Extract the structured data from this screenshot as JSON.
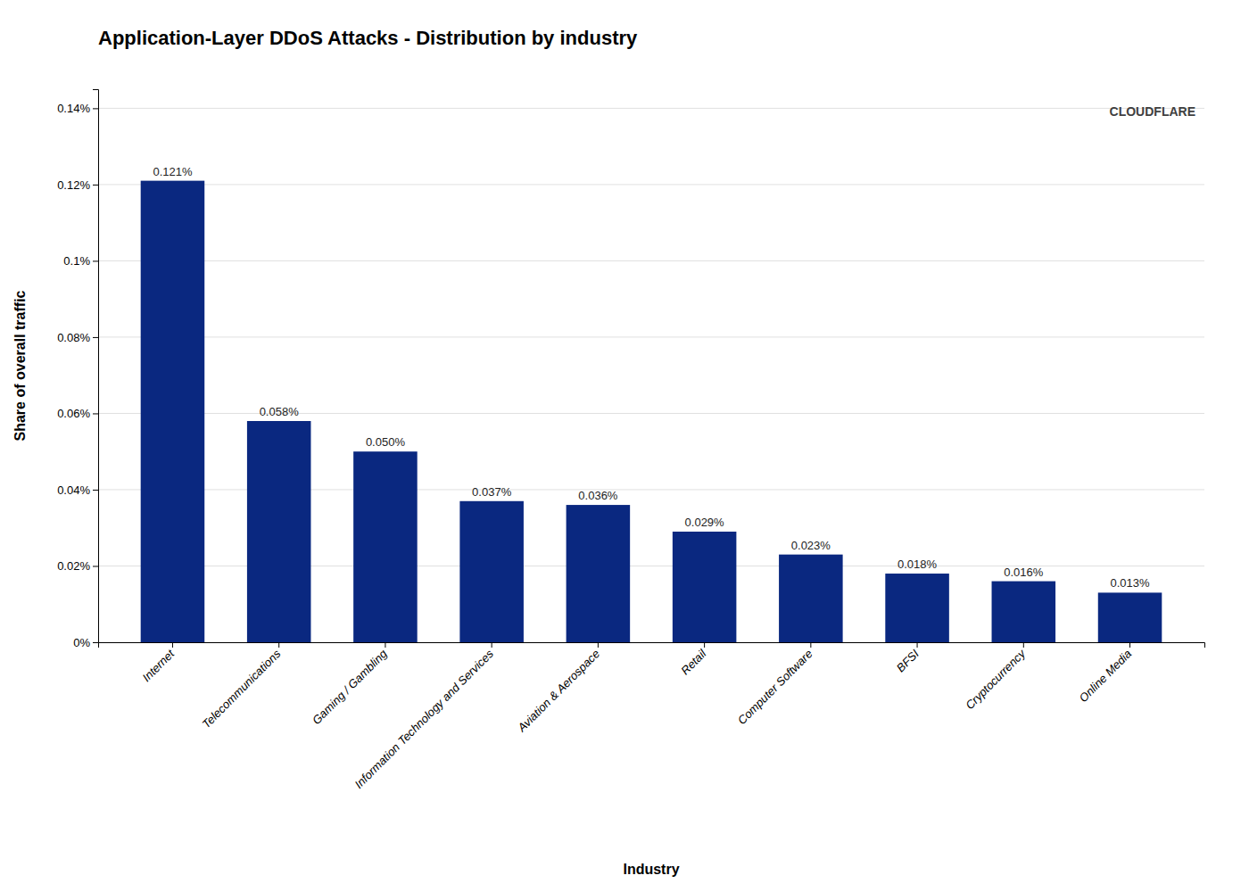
{
  "chart_data": {
    "type": "bar",
    "title": "Application-Layer DDoS Attacks - Distribution by industry",
    "xlabel": "Industry",
    "ylabel": "Share of overall traffic",
    "categories": [
      "Internet",
      "Telecommunications",
      "Gaming / Gambling",
      "Information Technology and Services",
      "Aviation & Aerospace",
      "Retail",
      "Computer Software",
      "BFSI",
      "Cryptocurrency",
      "Online Media"
    ],
    "values": [
      0.121,
      0.058,
      0.05,
      0.037,
      0.036,
      0.029,
      0.023,
      0.018,
      0.016,
      0.013
    ],
    "value_labels": [
      "0.121%",
      "0.058%",
      "0.050%",
      "0.037%",
      "0.036%",
      "0.029%",
      "0.023%",
      "0.018%",
      "0.016%",
      "0.013%"
    ],
    "data_labels": true,
    "color": "#0a2880",
    "ylim": [
      0,
      0.145
    ],
    "yticks": [
      {
        "value": 0,
        "label": "0%"
      },
      {
        "value": 0.02,
        "label": "0.02%"
      },
      {
        "value": 0.04,
        "label": "0.04%"
      },
      {
        "value": 0.06,
        "label": "0.06%"
      },
      {
        "value": 0.08,
        "label": "0.08%"
      },
      {
        "value": 0.1,
        "label": "0.1%"
      },
      {
        "value": 0.12,
        "label": "0.12%"
      },
      {
        "value": 0.14,
        "label": "0.14%"
      }
    ],
    "grid": true,
    "annotations": [
      "CLOUDFLARE"
    ]
  }
}
